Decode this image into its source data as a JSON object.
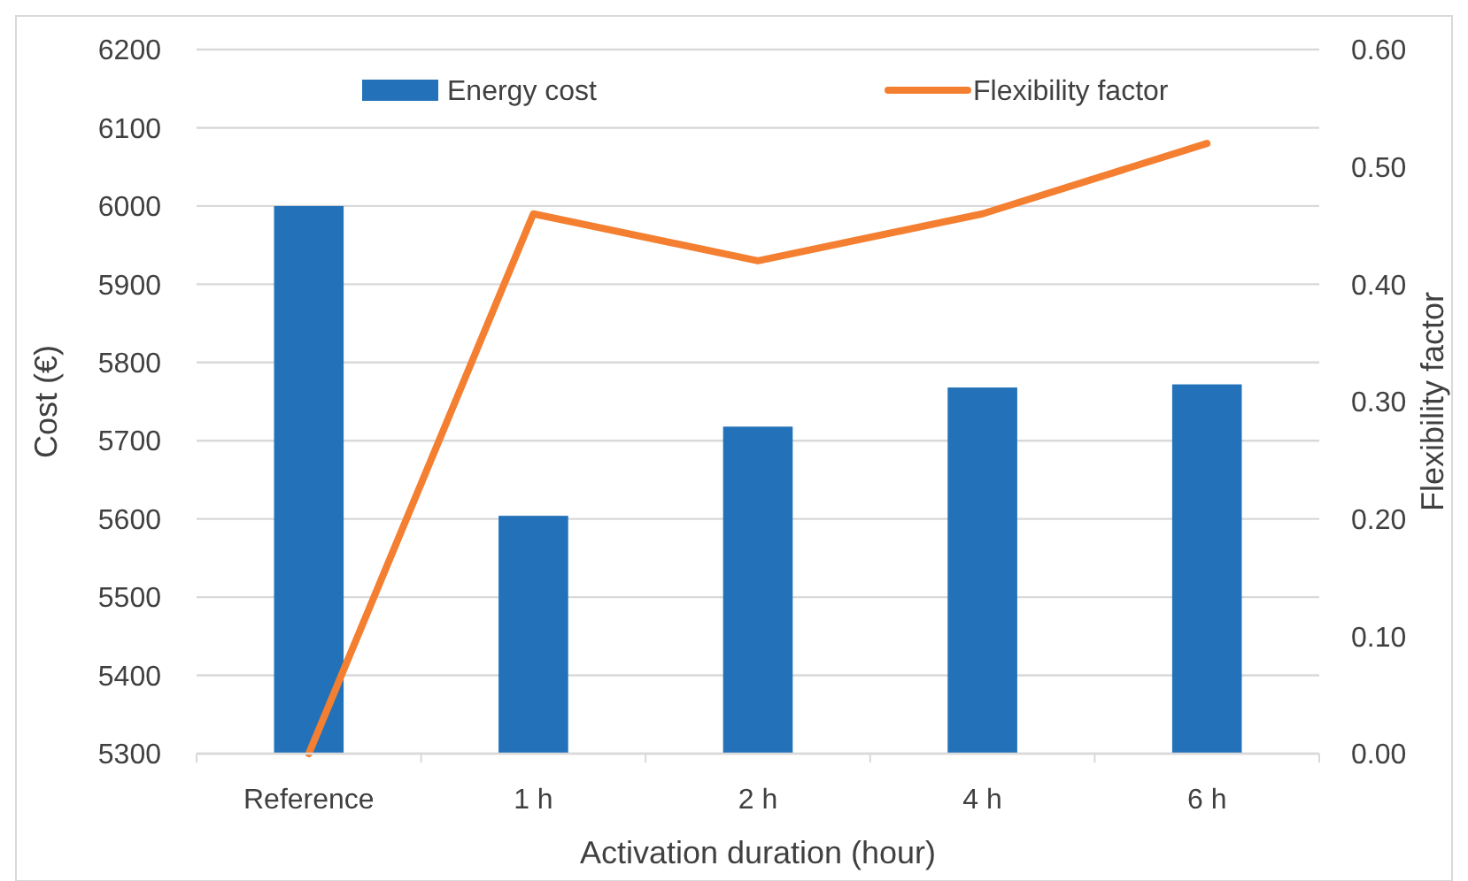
{
  "chart_data": {
    "type": "bar",
    "xlabel": "Activation duration (hour)",
    "ylabel": "Cost (€)",
    "y2label": "Flexibility factor",
    "categories": [
      "Reference",
      "1 h",
      "2 h",
      "4 h",
      "6 h"
    ],
    "series": [
      {
        "name": "Energy cost",
        "color": "#2372b9",
        "values": [
          6000,
          5604,
          5718,
          5768,
          5772
        ]
      },
      {
        "name": "Flexibility factor",
        "type": "line",
        "axis": "y2",
        "color": "#f47f31",
        "values": [
          0,
          0.46,
          0.42,
          0.46,
          0.52
        ]
      }
    ],
    "ylim": [
      5300,
      6200
    ],
    "yticks": [
      5300,
      5400,
      5500,
      5600,
      5700,
      5800,
      5900,
      6000,
      6100,
      6200
    ],
    "y2lim": [
      0,
      0.6
    ],
    "y2ticks": [
      {
        "value": 0,
        "label": "0.00"
      },
      {
        "value": 0.1,
        "label": "0.10"
      },
      {
        "value": 0.2,
        "label": "0.20"
      },
      {
        "value": 0.3,
        "label": "0.30"
      },
      {
        "value": 0.4,
        "label": "0.40"
      },
      {
        "value": 0.5,
        "label": "0.50"
      },
      {
        "value": 0.6,
        "label": "0.60"
      }
    ],
    "grid": "y",
    "legend": "top",
    "marker": "none",
    "line_style": "solid"
  }
}
